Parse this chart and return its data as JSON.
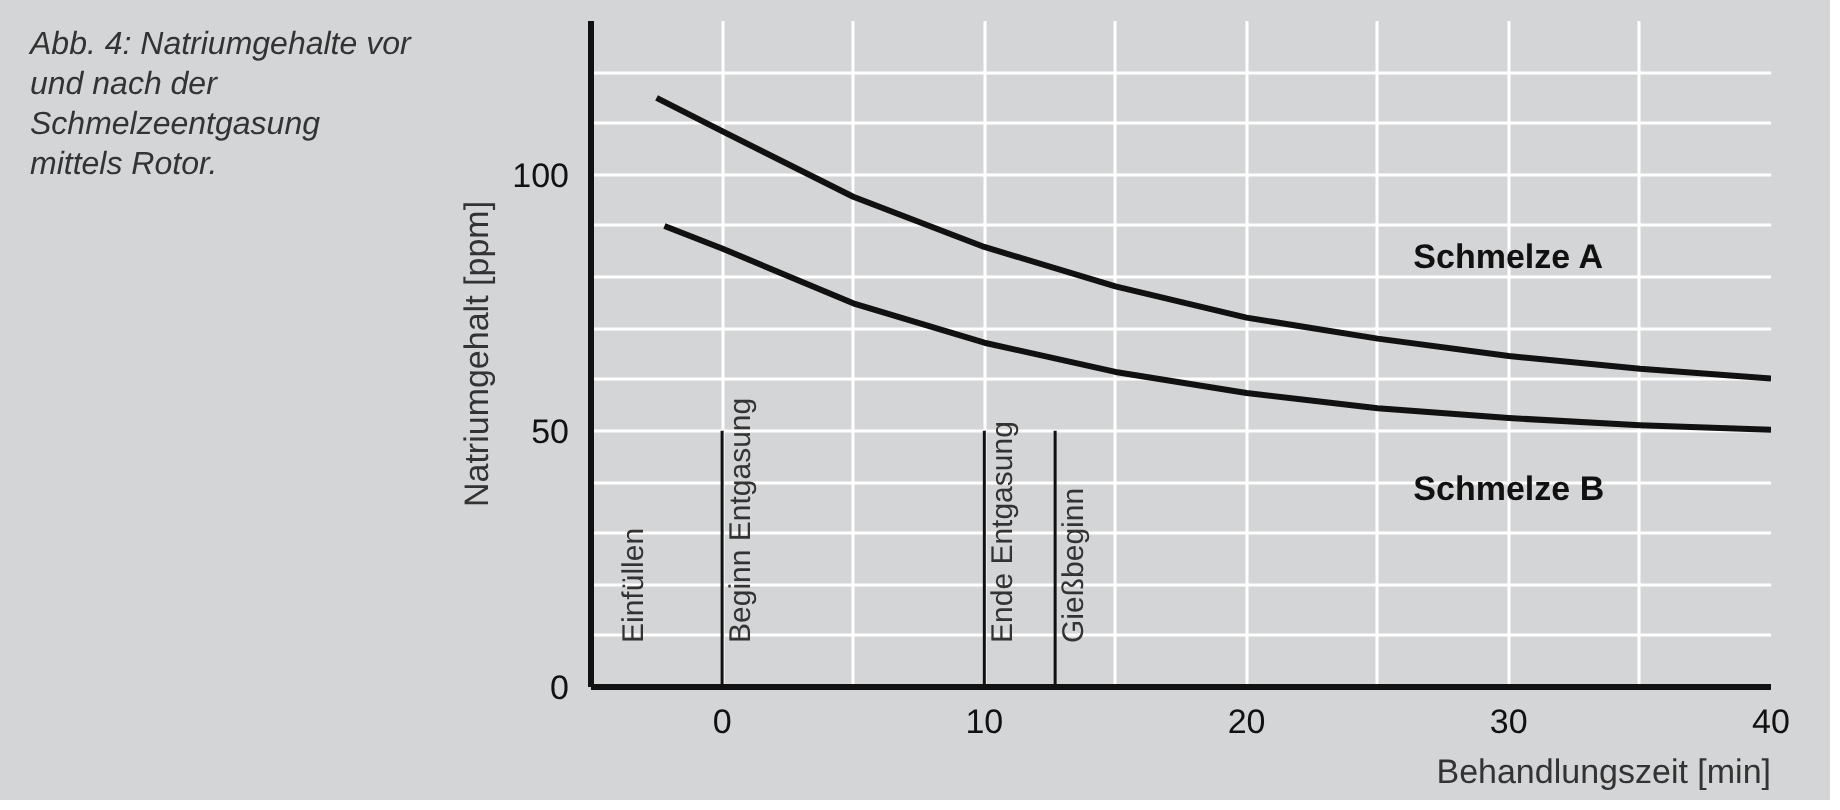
{
  "chart_data": {
    "type": "line",
    "title": "Abb. 4: Natriumgehalte vor und nach der Schmelzeentgasung mittels Rotor.",
    "xlabel": "Behandlungszeit [min]",
    "ylabel": "Natriumgehalt [ppm]",
    "x": [
      -2.5,
      0,
      5,
      10,
      15,
      20,
      25,
      30,
      35,
      40
    ],
    "series": [
      {
        "name": "Schmelze A",
        "color": "#111111",
        "values": [
          115,
          108.5,
          95.7,
          85.9,
          78.2,
          72.1,
          68,
          64.6,
          62.1,
          60.2
        ]
      },
      {
        "name": "Schmelze B",
        "color": "#111111",
        "x": [
          -2.2,
          0,
          5,
          10,
          15,
          20,
          25,
          30,
          35,
          40
        ],
        "values": [
          90,
          85.6,
          74.9,
          67.2,
          61.5,
          57.4,
          54.4,
          52.5,
          51.1,
          50.2
        ]
      }
    ],
    "xlim": [
      -5,
      40
    ],
    "ylim": [
      0,
      130
    ],
    "xticks": [
      {
        "value": -5,
        "label": null
      },
      0,
      {
        "value": 5,
        "label": null
      },
      10,
      {
        "value": 15,
        "label": null
      },
      20,
      {
        "value": 25,
        "label": null
      },
      30,
      {
        "value": 35,
        "label": null
      },
      40
    ],
    "yticks": [
      0,
      {
        "value": 10,
        "label": null
      },
      {
        "value": 20,
        "label": null
      },
      {
        "value": 30,
        "label": null
      },
      {
        "value": 40,
        "label": null
      },
      50,
      {
        "value": 60,
        "label": null
      },
      {
        "value": 70,
        "label": null
      },
      {
        "value": 80,
        "label": null
      },
      {
        "value": 90,
        "label": null
      },
      100,
      {
        "value": 110,
        "label": null
      },
      {
        "value": 120,
        "label": null
      }
    ],
    "ref_lines": [
      {
        "axis": "x",
        "value": 0,
        "label": "Beginn Entgasung",
        "color": "#111111"
      },
      {
        "axis": "x",
        "value": 10,
        "label": "Ende Entgasung",
        "color": "#111111"
      },
      {
        "axis": "x",
        "value": 12.7,
        "label": "Gießbeginn",
        "color": "#111111"
      }
    ],
    "annotations": [
      "Einfüllen"
    ],
    "grid": true,
    "marker": "none",
    "line_style": "solid"
  }
}
